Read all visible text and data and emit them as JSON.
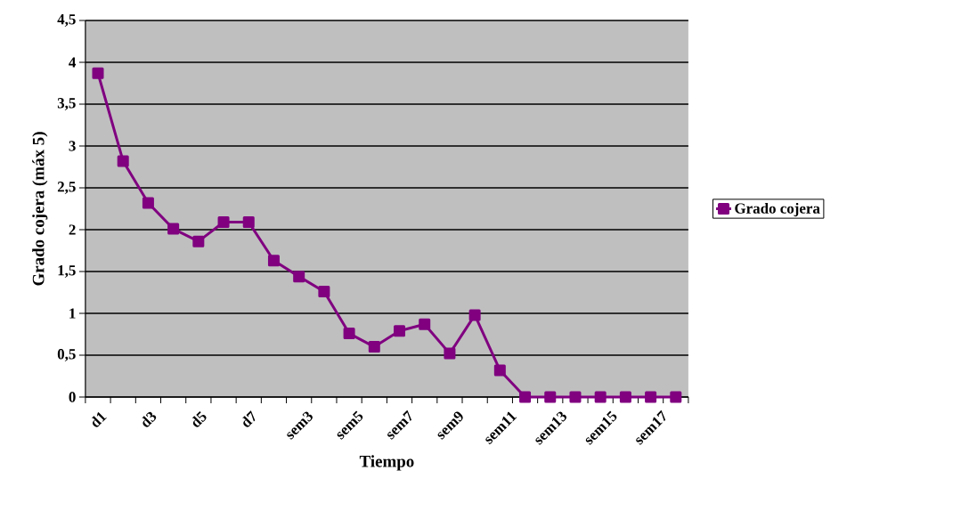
{
  "chart_data": {
    "type": "line",
    "xlabel": "Tiempo",
    "ylabel": "Grado cojera (máx 5)",
    "categories": [
      "d1",
      null,
      "d3",
      null,
      "d5",
      null,
      "d7",
      null,
      "sem3",
      null,
      "sem5",
      null,
      "sem7",
      null,
      "sem9",
      null,
      "sem11",
      null,
      "sem13",
      null,
      "sem15",
      null,
      "sem17",
      null
    ],
    "series": [
      {
        "name": "Grado cojera",
        "color": "#800080",
        "values": [
          3.87,
          2.82,
          2.32,
          2.01,
          1.86,
          2.09,
          2.09,
          1.63,
          1.44,
          1.26,
          0.76,
          0.6,
          0.79,
          0.87,
          0.52,
          0.98,
          0.32,
          0,
          0,
          0,
          0,
          0,
          0,
          0
        ]
      }
    ],
    "ylim": [
      0,
      4.5
    ],
    "yticks": [
      0,
      {
        "value": 0.5,
        "label": "0,5"
      },
      1,
      {
        "value": 1.5,
        "label": "1,5"
      },
      2,
      {
        "value": 2.5,
        "label": "2,5"
      },
      3,
      {
        "value": 3.5,
        "label": "3,5"
      },
      4,
      {
        "value": 4.5,
        "label": "4,5"
      }
    ],
    "grid": "y",
    "legend": "right",
    "marker": "square",
    "line_style": "solid"
  }
}
